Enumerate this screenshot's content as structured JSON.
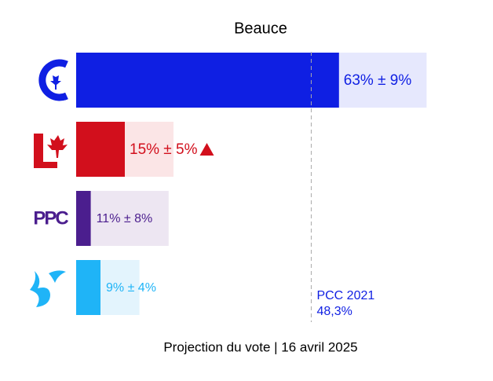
{
  "chart_data": {
    "type": "bar-range",
    "orientation": "horizontal",
    "title": "Beauce",
    "subtitle": "Projection du vote | 16 avril 2025",
    "categories": [
      null,
      null,
      "PPC",
      null
    ],
    "values": [
      63,
      15,
      11,
      9
    ],
    "errors": [
      9,
      5,
      8,
      4
    ],
    "value_labels": [
      "63% ± 9%",
      "15% ± 5%",
      "11% ± 8%",
      "9% ± 4%"
    ],
    "trend_up": [
      false,
      true,
      false,
      false
    ],
    "colors": [
      "#0f1fe3",
      "#d20f1c",
      "#4b1e8e",
      "#1fb4f7"
    ],
    "light_colors": [
      "#e6e8fd",
      "#fbe5e6",
      "#ede6f2",
      "#e3f4fd"
    ],
    "xlim": [
      0,
      85
    ],
    "reference": {
      "value": 48.3,
      "label": "48,3%",
      "name": "PCC 2021",
      "color": "#0f1fe3"
    }
  }
}
